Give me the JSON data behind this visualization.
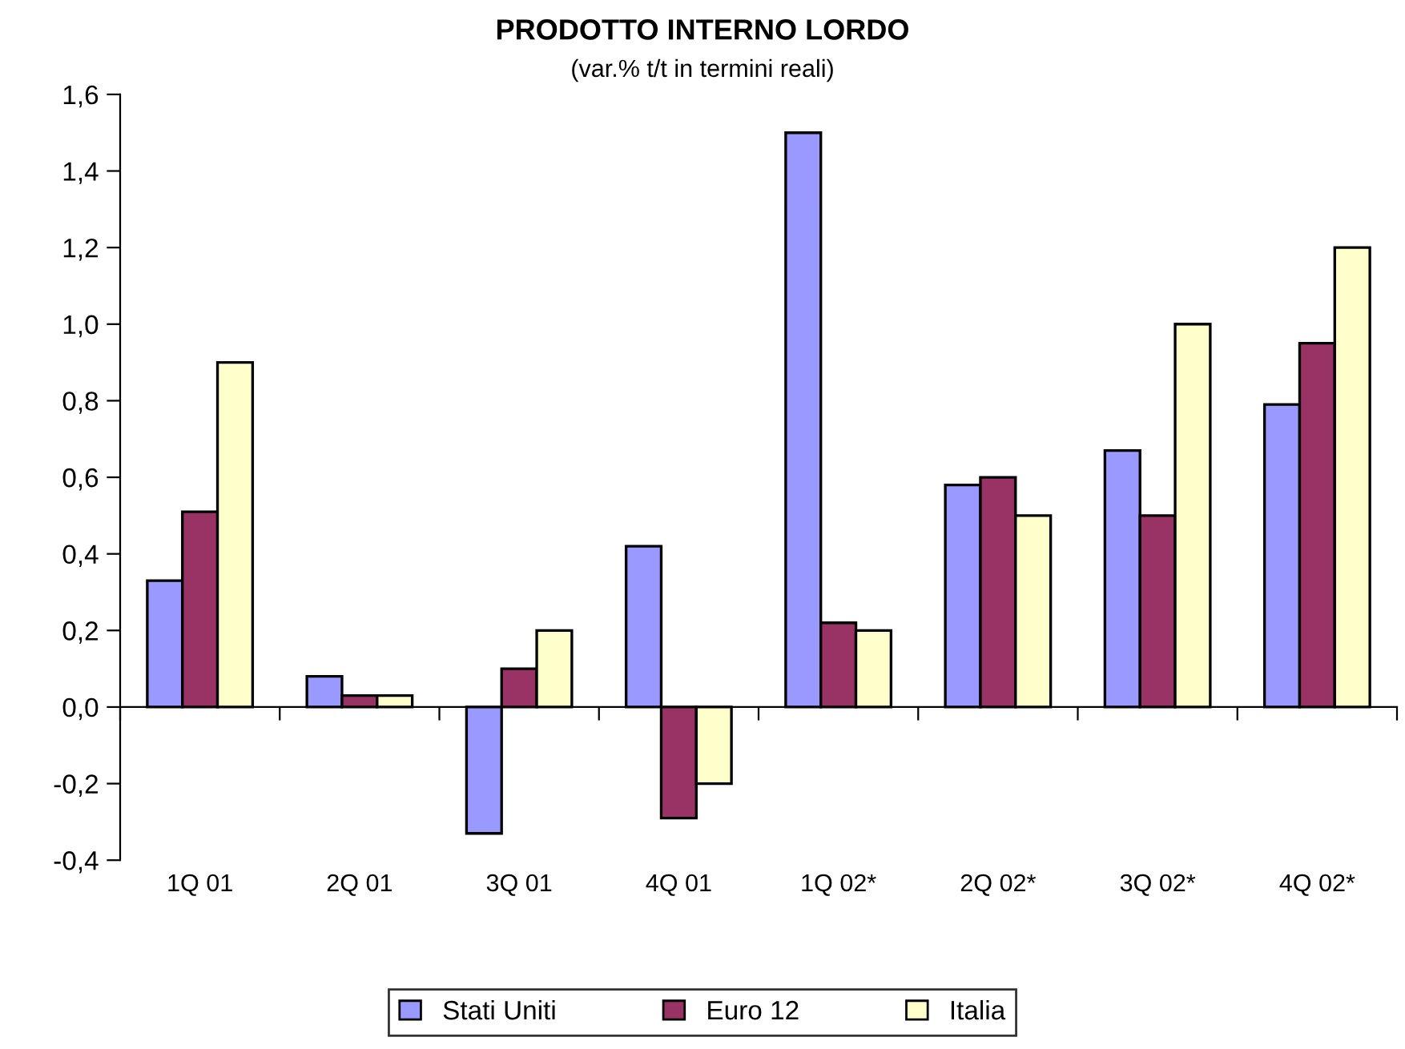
{
  "chart_data": {
    "type": "bar",
    "title": "PRODOTTO INTERNO LORDO",
    "subtitle": "(var.% t/t in termini reali)",
    "categories": [
      "1Q 01",
      "2Q 01",
      "3Q 01",
      "4Q 01",
      "1Q 02*",
      "2Q 02*",
      "3Q 02*",
      "4Q 02*"
    ],
    "series": [
      {
        "name": "Stati Uniti",
        "color": "#9999ff",
        "values": [
          0.33,
          0.08,
          -0.33,
          0.42,
          1.5,
          0.58,
          0.67,
          0.79
        ]
      },
      {
        "name": "Euro 12",
        "color": "#993366",
        "values": [
          0.51,
          0.03,
          0.1,
          -0.29,
          0.22,
          0.6,
          0.5,
          0.95
        ]
      },
      {
        "name": "Italia",
        "color": "#ffffcc",
        "values": [
          0.9,
          0.03,
          0.2,
          -0.2,
          0.2,
          0.5,
          1.0,
          1.2
        ]
      }
    ],
    "ylim": [
      -0.4,
      1.6
    ],
    "yticks": [
      {
        "value": -0.4,
        "label": "-0,4"
      },
      {
        "value": -0.2,
        "label": "-0,2"
      },
      {
        "value": 0,
        "label": "0,0"
      },
      {
        "value": 0.2,
        "label": "0,2"
      },
      {
        "value": 0.4,
        "label": "0,4"
      },
      {
        "value": 0.6,
        "label": "0,6"
      },
      {
        "value": 0.8,
        "label": "0,8"
      },
      {
        "value": 1.0,
        "label": "1,0"
      },
      {
        "value": 1.2,
        "label": "1,2"
      },
      {
        "value": 1.4,
        "label": "1,4"
      },
      {
        "value": 1.6,
        "label": "1,6"
      }
    ],
    "legend": "bottom"
  }
}
